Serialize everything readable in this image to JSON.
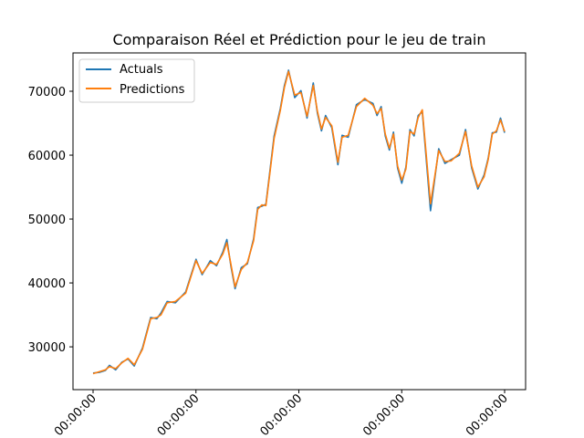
{
  "chart_data": {
    "type": "line",
    "title": "Comparaison Réel et Prédiction pour le jeu de train",
    "xlabel": "",
    "ylabel": "",
    "grid": false,
    "legend_position": "top-left",
    "x_tick_labels": [
      "00:00:00",
      "00:00:00",
      "00:00:00",
      "00:00:00",
      "00:00:00"
    ],
    "y_ticks": [
      30000,
      40000,
      50000,
      60000,
      70000
    ],
    "ylim": [
      23300,
      76000
    ],
    "x": [
      0,
      15,
      30,
      40,
      55,
      70,
      85,
      100,
      120,
      140,
      155,
      165,
      180,
      200,
      225,
      250,
      265,
      285,
      300,
      315,
      325,
      335,
      345,
      360,
      375,
      390,
      400,
      410,
      420,
      440,
      455,
      465,
      475,
      490,
      505,
      520,
      535,
      545,
      555,
      565,
      580,
      595,
      605,
      620,
      640,
      660,
      680,
      690,
      700,
      710,
      720,
      730,
      740,
      750,
      760,
      770,
      780,
      790,
      800,
      820,
      840,
      855,
      870,
      890,
      905,
      920,
      935,
      950,
      960,
      970,
      980,
      990,
      1000
    ],
    "series": [
      {
        "name": "Actuals",
        "color": "#1f77b4",
        "values": [
          25900,
          26000,
          26300,
          27100,
          26400,
          27600,
          28100,
          27000,
          29800,
          34600,
          34400,
          35300,
          37100,
          36900,
          38600,
          43700,
          41300,
          43500,
          42700,
          44800,
          46800,
          42600,
          39100,
          42400,
          43000,
          46900,
          51800,
          52000,
          52300,
          63000,
          67300,
          70900,
          73300,
          69000,
          70100,
          65800,
          71300,
          66600,
          63800,
          66200,
          64300,
          58500,
          63100,
          62800,
          67900,
          68700,
          68100,
          66200,
          67600,
          63000,
          60800,
          63600,
          58000,
          55600,
          58100,
          64000,
          63000,
          66200,
          66800,
          51300,
          61000,
          58700,
          59300,
          60000,
          64000,
          58000,
          54700,
          56900,
          59500,
          63500,
          63600,
          65800,
          63500
        ]
      },
      {
        "name": "Predictions",
        "color": "#ff7f0e",
        "values": [
          25800,
          26100,
          26400,
          26900,
          26600,
          27500,
          28200,
          27200,
          29600,
          34400,
          34600,
          35000,
          36900,
          37100,
          38400,
          43500,
          41500,
          43200,
          42900,
          44500,
          46300,
          42900,
          39400,
          42100,
          43200,
          46600,
          51500,
          52200,
          52100,
          62600,
          67000,
          70600,
          73100,
          69400,
          69800,
          66100,
          70900,
          66900,
          64100,
          65900,
          64600,
          58900,
          62800,
          63100,
          67600,
          68900,
          67800,
          66500,
          67300,
          63300,
          61100,
          63300,
          58300,
          56100,
          57800,
          63700,
          63300,
          65900,
          67100,
          52400,
          60700,
          59000,
          59100,
          60300,
          63700,
          58300,
          55000,
          56600,
          59300,
          63300,
          63800,
          65500,
          63700
        ]
      }
    ]
  }
}
